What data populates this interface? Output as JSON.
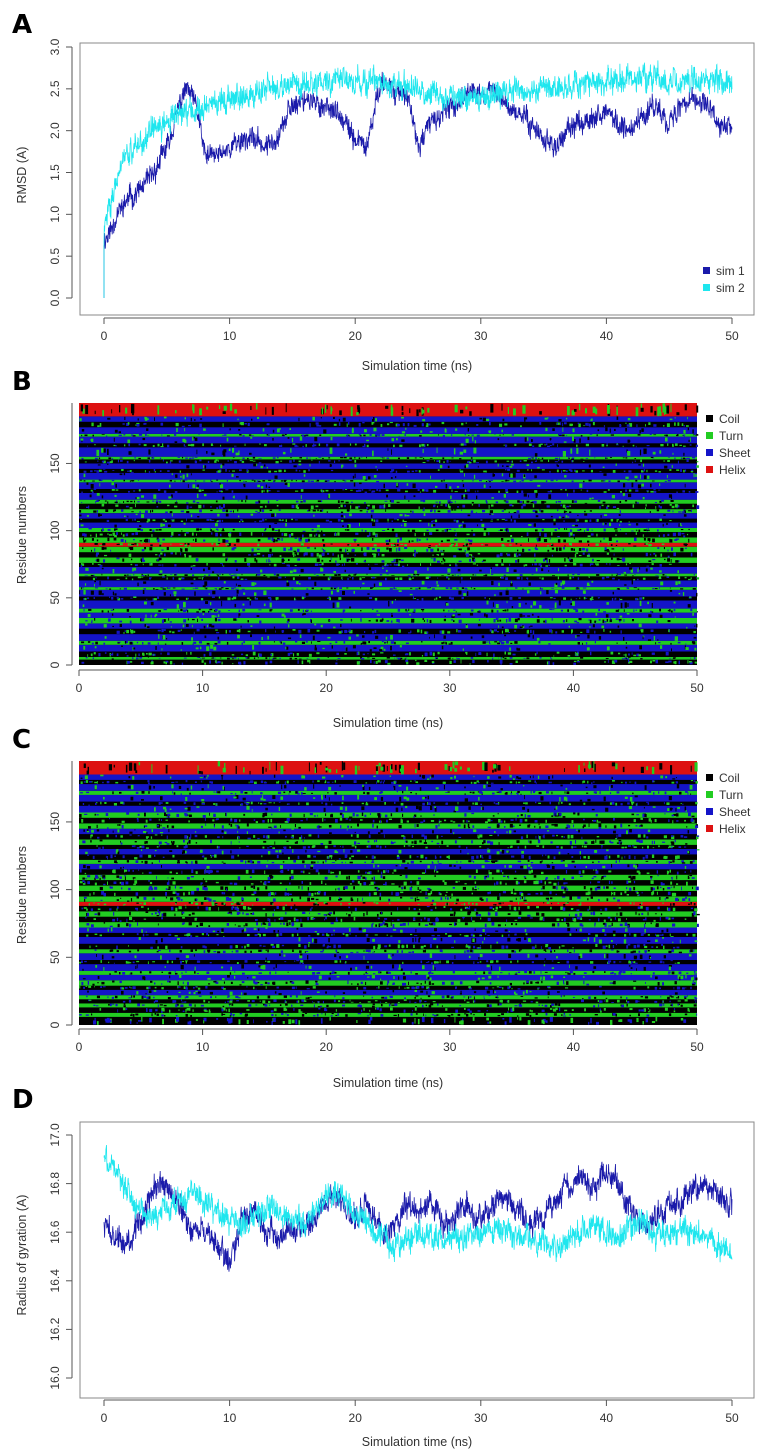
{
  "chart_data": [
    {
      "panel": "A",
      "type": "line",
      "xlabel": "Simulation time (ns)",
      "ylabel": "RMSD (A)",
      "xlim": [
        0,
        50
      ],
      "ylim": [
        0,
        3.0
      ],
      "xticks": [
        "0",
        "10",
        "20",
        "30",
        "40",
        "50"
      ],
      "yticks": [
        "0.0",
        "0.5",
        "1.0",
        "1.5",
        "2.0",
        "2.5",
        "3.0"
      ],
      "legend_position": "bottom-right",
      "series": [
        {
          "name": "sim 1",
          "color": "#1a1aaa",
          "x": [
            0,
            0.5,
            1,
            2,
            3,
            4,
            5,
            6,
            6.5,
            7,
            7.5,
            8,
            9,
            10,
            11,
            12,
            13,
            14,
            15,
            16,
            17,
            18,
            19,
            20,
            21,
            22,
            23,
            24,
            24.5,
            25,
            26,
            27,
            28,
            29,
            30,
            31,
            32,
            33,
            34,
            35,
            36,
            37,
            38,
            39,
            40,
            41,
            42,
            43,
            44,
            45,
            46,
            47,
            48,
            49,
            50
          ],
          "y": [
            0.7,
            0.8,
            1.0,
            1.2,
            1.3,
            1.5,
            1.8,
            2.3,
            2.5,
            2.4,
            2.2,
            1.7,
            1.7,
            1.8,
            1.9,
            1.9,
            1.8,
            2.0,
            2.3,
            2.4,
            2.3,
            2.3,
            2.1,
            1.9,
            1.8,
            2.6,
            2.5,
            2.4,
            2.2,
            1.8,
            2.1,
            2.2,
            2.3,
            2.5,
            2.4,
            2.5,
            2.3,
            2.2,
            2.1,
            1.9,
            1.8,
            2.0,
            2.1,
            2.2,
            2.2,
            2.1,
            2.0,
            2.2,
            2.3,
            2.1,
            2.3,
            2.4,
            2.3,
            2.0,
            2.1
          ],
          "noise": 0.12
        },
        {
          "name": "sim 2",
          "color": "#1ee6ee",
          "x": [
            0,
            0.5,
            1,
            2,
            3,
            4,
            5,
            6,
            8,
            10,
            12,
            14,
            16,
            18,
            20,
            22,
            24,
            26,
            28,
            30,
            32,
            34,
            36,
            38,
            40,
            42,
            44,
            46,
            48,
            50
          ],
          "y": [
            0.8,
            1.1,
            1.5,
            1.7,
            1.9,
            2.0,
            2.1,
            2.2,
            2.3,
            2.4,
            2.45,
            2.5,
            2.55,
            2.6,
            2.6,
            2.55,
            2.5,
            2.45,
            2.4,
            2.4,
            2.45,
            2.5,
            2.5,
            2.55,
            2.6,
            2.65,
            2.6,
            2.6,
            2.6,
            2.6
          ],
          "noise": 0.14
        }
      ]
    },
    {
      "panel": "B",
      "type": "heatmap",
      "xlabel": "Simulation time (ns)",
      "ylabel": "Residue numbers",
      "xlim": [
        0,
        50
      ],
      "ylim": [
        0,
        195
      ],
      "xticks": [
        "0",
        "10",
        "20",
        "30",
        "40",
        "50"
      ],
      "yticks": [
        "0",
        "50",
        "100",
        "150"
      ],
      "categories": [
        "Coil",
        "Turn",
        "Sheet",
        "Helix"
      ],
      "colors": [
        "#000000",
        "#22cc22",
        "#1414c8",
        "#dd1111"
      ],
      "band_residue_ranges": [
        {
          "from": 0,
          "to": 4,
          "state": "Coil"
        },
        {
          "from": 4,
          "to": 6,
          "state": "Turn"
        },
        {
          "from": 6,
          "to": 10,
          "state": "Coil"
        },
        {
          "from": 10,
          "to": 15,
          "state": "Sheet"
        },
        {
          "from": 15,
          "to": 18,
          "state": "Turn"
        },
        {
          "from": 18,
          "to": 23,
          "state": "Sheet"
        },
        {
          "from": 23,
          "to": 27,
          "state": "Coil"
        },
        {
          "from": 27,
          "to": 31,
          "state": "Sheet"
        },
        {
          "from": 31,
          "to": 35,
          "state": "Turn"
        },
        {
          "from": 35,
          "to": 39,
          "state": "Sheet"
        },
        {
          "from": 39,
          "to": 42,
          "state": "Turn"
        },
        {
          "from": 42,
          "to": 48,
          "state": "Sheet"
        },
        {
          "from": 48,
          "to": 51,
          "state": "Coil"
        },
        {
          "from": 51,
          "to": 56,
          "state": "Sheet"
        },
        {
          "from": 56,
          "to": 58,
          "state": "Turn"
        },
        {
          "from": 58,
          "to": 63,
          "state": "Sheet"
        },
        {
          "from": 63,
          "to": 66,
          "state": "Coil"
        },
        {
          "from": 66,
          "to": 68,
          "state": "Turn"
        },
        {
          "from": 68,
          "to": 73,
          "state": "Sheet"
        },
        {
          "from": 73,
          "to": 76,
          "state": "Coil"
        },
        {
          "from": 76,
          "to": 80,
          "state": "Turn"
        },
        {
          "from": 80,
          "to": 84,
          "state": "Coil"
        },
        {
          "from": 84,
          "to": 88,
          "state": "Turn"
        },
        {
          "from": 88,
          "to": 91,
          "state": "Helix"
        },
        {
          "from": 91,
          "to": 95,
          "state": "Turn"
        },
        {
          "from": 95,
          "to": 99,
          "state": "Coil"
        },
        {
          "from": 99,
          "to": 102,
          "state": "Turn"
        },
        {
          "from": 102,
          "to": 106,
          "state": "Sheet"
        },
        {
          "from": 106,
          "to": 109,
          "state": "Coil"
        },
        {
          "from": 109,
          "to": 113,
          "state": "Sheet"
        },
        {
          "from": 113,
          "to": 116,
          "state": "Turn"
        },
        {
          "from": 116,
          "to": 120,
          "state": "Coil"
        },
        {
          "from": 120,
          "to": 123,
          "state": "Turn"
        },
        {
          "from": 123,
          "to": 128,
          "state": "Sheet"
        },
        {
          "from": 128,
          "to": 131,
          "state": "Coil"
        },
        {
          "from": 131,
          "to": 136,
          "state": "Sheet"
        },
        {
          "from": 136,
          "to": 138,
          "state": "Turn"
        },
        {
          "from": 138,
          "to": 143,
          "state": "Sheet"
        },
        {
          "from": 143,
          "to": 146,
          "state": "Coil"
        },
        {
          "from": 146,
          "to": 150,
          "state": "Sheet"
        },
        {
          "from": 150,
          "to": 153,
          "state": "Coil"
        },
        {
          "from": 153,
          "to": 155,
          "state": "Turn"
        },
        {
          "from": 155,
          "to": 162,
          "state": "Sheet"
        },
        {
          "from": 162,
          "to": 165,
          "state": "Coil"
        },
        {
          "from": 165,
          "to": 170,
          "state": "Sheet"
        },
        {
          "from": 170,
          "to": 172,
          "state": "Turn"
        },
        {
          "from": 172,
          "to": 177,
          "state": "Sheet"
        },
        {
          "from": 177,
          "to": 181,
          "state": "Coil"
        },
        {
          "from": 181,
          "to": 185,
          "state": "Sheet"
        },
        {
          "from": 185,
          "to": 195,
          "state": "Helix"
        }
      ]
    },
    {
      "panel": "C",
      "type": "heatmap",
      "xlabel": "Simulation time (ns)",
      "ylabel": "Residue numbers",
      "xlim": [
        0,
        50
      ],
      "ylim": [
        0,
        195
      ],
      "xticks": [
        "0",
        "10",
        "20",
        "30",
        "40",
        "50"
      ],
      "yticks": [
        "0",
        "50",
        "100",
        "150"
      ],
      "categories": [
        "Coil",
        "Turn",
        "Sheet",
        "Helix"
      ],
      "colors": [
        "#000000",
        "#22cc22",
        "#1414c8",
        "#dd1111"
      ],
      "band_residue_ranges": [
        {
          "from": 0,
          "to": 6,
          "state": "Coil"
        },
        {
          "from": 6,
          "to": 9,
          "state": "Turn"
        },
        {
          "from": 9,
          "to": 13,
          "state": "Coil"
        },
        {
          "from": 13,
          "to": 16,
          "state": "Turn"
        },
        {
          "from": 16,
          "to": 19,
          "state": "Coil"
        },
        {
          "from": 19,
          "to": 22,
          "state": "Turn"
        },
        {
          "from": 22,
          "to": 26,
          "state": "Sheet"
        },
        {
          "from": 26,
          "to": 29,
          "state": "Coil"
        },
        {
          "from": 29,
          "to": 33,
          "state": "Turn"
        },
        {
          "from": 33,
          "to": 37,
          "state": "Sheet"
        },
        {
          "from": 37,
          "to": 40,
          "state": "Turn"
        },
        {
          "from": 40,
          "to": 45,
          "state": "Sheet"
        },
        {
          "from": 45,
          "to": 48,
          "state": "Coil"
        },
        {
          "from": 48,
          "to": 53,
          "state": "Sheet"
        },
        {
          "from": 53,
          "to": 56,
          "state": "Turn"
        },
        {
          "from": 56,
          "to": 60,
          "state": "Coil"
        },
        {
          "from": 60,
          "to": 65,
          "state": "Sheet"
        },
        {
          "from": 65,
          "to": 68,
          "state": "Coil"
        },
        {
          "from": 68,
          "to": 72,
          "state": "Sheet"
        },
        {
          "from": 72,
          "to": 76,
          "state": "Turn"
        },
        {
          "from": 76,
          "to": 80,
          "state": "Coil"
        },
        {
          "from": 80,
          "to": 84,
          "state": "Turn"
        },
        {
          "from": 84,
          "to": 88,
          "state": "Coil"
        },
        {
          "from": 88,
          "to": 91,
          "state": "Helix"
        },
        {
          "from": 91,
          "to": 95,
          "state": "Turn"
        },
        {
          "from": 95,
          "to": 99,
          "state": "Coil"
        },
        {
          "from": 99,
          "to": 103,
          "state": "Turn"
        },
        {
          "from": 103,
          "to": 107,
          "state": "Coil"
        },
        {
          "from": 107,
          "to": 111,
          "state": "Turn"
        },
        {
          "from": 111,
          "to": 115,
          "state": "Coil"
        },
        {
          "from": 115,
          "to": 119,
          "state": "Sheet"
        },
        {
          "from": 119,
          "to": 122,
          "state": "Turn"
        },
        {
          "from": 122,
          "to": 126,
          "state": "Coil"
        },
        {
          "from": 126,
          "to": 130,
          "state": "Sheet"
        },
        {
          "from": 130,
          "to": 133,
          "state": "Coil"
        },
        {
          "from": 133,
          "to": 137,
          "state": "Turn"
        },
        {
          "from": 137,
          "to": 141,
          "state": "Coil"
        },
        {
          "from": 141,
          "to": 145,
          "state": "Sheet"
        },
        {
          "from": 145,
          "to": 149,
          "state": "Turn"
        },
        {
          "from": 149,
          "to": 153,
          "state": "Coil"
        },
        {
          "from": 153,
          "to": 157,
          "state": "Turn"
        },
        {
          "from": 157,
          "to": 162,
          "state": "Sheet"
        },
        {
          "from": 162,
          "to": 165,
          "state": "Coil"
        },
        {
          "from": 165,
          "to": 170,
          "state": "Sheet"
        },
        {
          "from": 170,
          "to": 173,
          "state": "Turn"
        },
        {
          "from": 173,
          "to": 178,
          "state": "Sheet"
        },
        {
          "from": 178,
          "to": 181,
          "state": "Coil"
        },
        {
          "from": 181,
          "to": 185,
          "state": "Sheet"
        },
        {
          "from": 185,
          "to": 195,
          "state": "Helix"
        }
      ]
    },
    {
      "panel": "D",
      "type": "line",
      "xlabel": "Simulation time (ns)",
      "ylabel": "Radius of gyration (A)",
      "xlim": [
        0,
        50
      ],
      "ylim": [
        16.0,
        17.0
      ],
      "xticks": [
        "0",
        "10",
        "20",
        "30",
        "40",
        "50"
      ],
      "yticks": [
        "16.0",
        "16.2",
        "16.4",
        "16.6",
        "16.8",
        "17.0"
      ],
      "series": [
        {
          "color": "#1a1aaa",
          "x": [
            0,
            1,
            2,
            3,
            4,
            5,
            6,
            7,
            8,
            9,
            10,
            11,
            12,
            13,
            14,
            15,
            16,
            17,
            18,
            19,
            20,
            21,
            22,
            23,
            24,
            25,
            26,
            27,
            28,
            29,
            30,
            31,
            32,
            33,
            34,
            35,
            36,
            37,
            38,
            39,
            40,
            41,
            42,
            43,
            44,
            45,
            46,
            47,
            48,
            49,
            50
          ],
          "y": [
            16.62,
            16.58,
            16.55,
            16.65,
            16.78,
            16.8,
            16.7,
            16.6,
            16.62,
            16.55,
            16.48,
            16.65,
            16.7,
            16.6,
            16.58,
            16.62,
            16.6,
            16.7,
            16.75,
            16.72,
            16.65,
            16.7,
            16.62,
            16.6,
            16.72,
            16.68,
            16.75,
            16.62,
            16.68,
            16.7,
            16.65,
            16.72,
            16.74,
            16.7,
            16.62,
            16.66,
            16.72,
            16.8,
            16.82,
            16.78,
            16.84,
            16.8,
            16.7,
            16.62,
            16.66,
            16.7,
            16.72,
            16.78,
            16.8,
            16.75,
            16.72
          ],
          "noise": 0.05
        },
        {
          "color": "#1ee6ee",
          "x": [
            0,
            1,
            2,
            3,
            4,
            5,
            6,
            7,
            8,
            9,
            10,
            11,
            12,
            13,
            14,
            15,
            16,
            17,
            18,
            19,
            20,
            21,
            22,
            23,
            24,
            25,
            26,
            27,
            28,
            29,
            30,
            31,
            32,
            33,
            34,
            35,
            36,
            37,
            38,
            39,
            40,
            41,
            42,
            43,
            44,
            45,
            46,
            47,
            48,
            49,
            50
          ],
          "y": [
            16.9,
            16.85,
            16.75,
            16.68,
            16.65,
            16.7,
            16.72,
            16.76,
            16.72,
            16.68,
            16.65,
            16.62,
            16.66,
            16.7,
            16.68,
            16.65,
            16.64,
            16.7,
            16.76,
            16.75,
            16.7,
            16.62,
            16.58,
            16.55,
            16.56,
            16.6,
            16.58,
            16.56,
            16.58,
            16.6,
            16.58,
            16.62,
            16.6,
            16.58,
            16.56,
            16.55,
            16.52,
            16.58,
            16.6,
            16.62,
            16.6,
            16.58,
            16.62,
            16.64,
            16.6,
            16.58,
            16.62,
            16.6,
            16.58,
            16.54,
            16.52
          ],
          "noise": 0.05
        }
      ]
    }
  ]
}
